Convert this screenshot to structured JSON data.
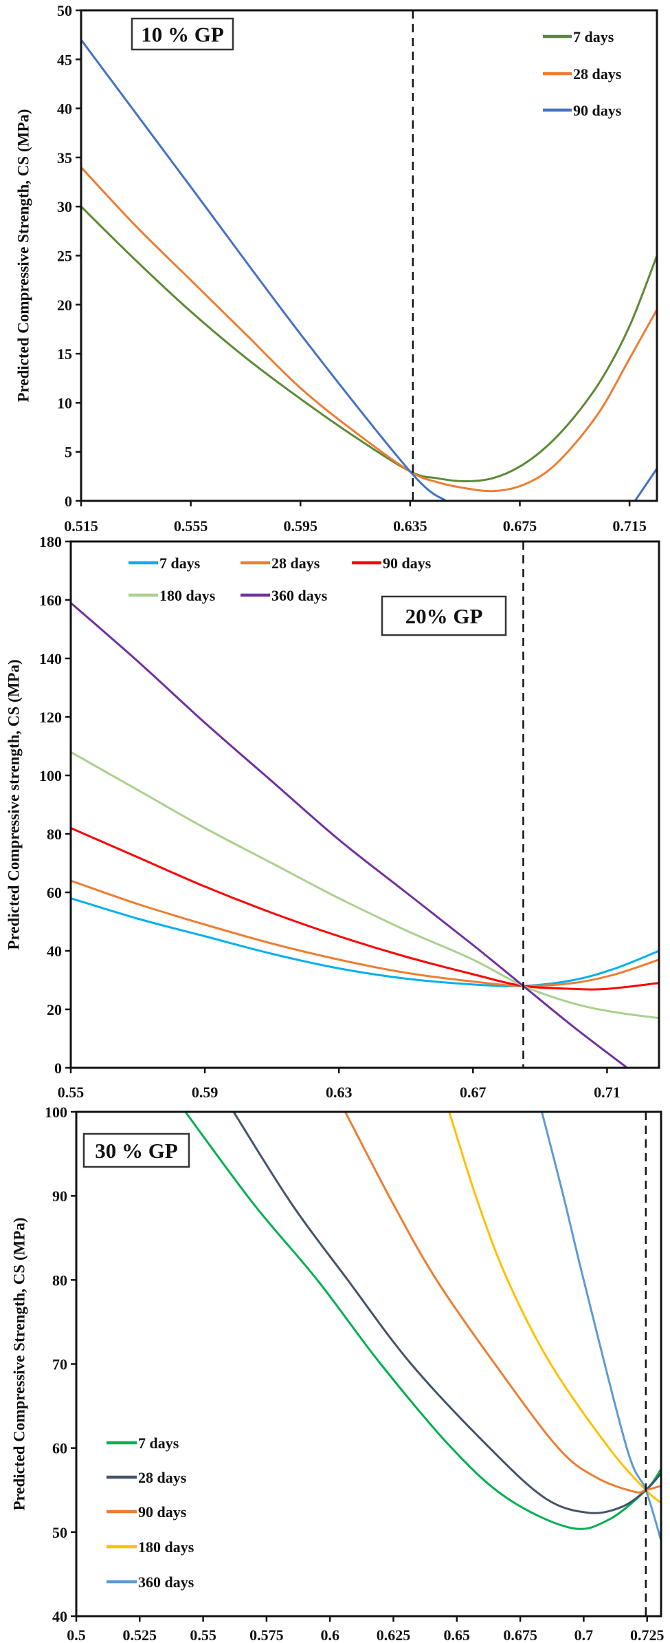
{
  "chart_data": [
    {
      "type": "line",
      "title": "10 % GP",
      "xlabel": "",
      "ylabel": "Predicted Compressive Strength, CS (MPa)",
      "xlim": [
        0.515,
        0.725
      ],
      "ylim": [
        0,
        50
      ],
      "xticks": [
        "0.515",
        "0.555",
        "0.595",
        "0.635",
        "0.675",
        "0.715"
      ],
      "yticks": [
        "0",
        "5",
        "10",
        "15",
        "20",
        "25",
        "30",
        "35",
        "40",
        "45",
        "50"
      ],
      "grid": false,
      "legend_position": "top-right",
      "reference_line_x": 0.636,
      "series": [
        {
          "name": "7 days",
          "color": "#5b8a33",
          "x": [
            0.515,
            0.535,
            0.555,
            0.575,
            0.595,
            0.615,
            0.635,
            0.645,
            0.655,
            0.665,
            0.675,
            0.685,
            0.695,
            0.705,
            0.715,
            0.725
          ],
          "y": [
            30,
            24.5,
            19.3,
            14.6,
            10.4,
            6.5,
            3.0,
            2.3,
            2.0,
            2.3,
            3.5,
            5.6,
            8.6,
            12.5,
            17.8,
            25
          ]
        },
        {
          "name": "28 days",
          "color": "#ed7d31",
          "x": [
            0.515,
            0.535,
            0.555,
            0.575,
            0.595,
            0.615,
            0.635,
            0.645,
            0.655,
            0.665,
            0.675,
            0.685,
            0.695,
            0.705,
            0.715,
            0.725
          ],
          "y": [
            34,
            28,
            22.5,
            17,
            11.5,
            7,
            3.0,
            1.9,
            1.3,
            1.0,
            1.5,
            3.0,
            5.8,
            9.5,
            14.5,
            19.5
          ]
        },
        {
          "name": "90 days",
          "color": "#4472c4",
          "x": [
            0.515,
            0.555,
            0.595,
            0.635,
            0.648,
            0.68,
            0.717,
            0.725
          ],
          "y": [
            47,
            32,
            17,
            3,
            0,
            null,
            0,
            3.3
          ]
        }
      ]
    },
    {
      "type": "line",
      "title": "20% GP",
      "xlabel": "",
      "ylabel": "Predicted Compressive strength, CS (MPa)",
      "xlim": [
        0.55,
        0.7255
      ],
      "ylim": [
        0,
        180
      ],
      "xticks": [
        "0.55",
        "0.59",
        "0.63",
        "0.67",
        "0.71"
      ],
      "yticks": [
        "0",
        "20",
        "40",
        "60",
        "80",
        "100",
        "120",
        "140",
        "160",
        "180"
      ],
      "grid": false,
      "legend_position": "top-left",
      "reference_line_x": 0.685,
      "series": [
        {
          "name": "7 days",
          "color": "#00b0f0",
          "x": [
            0.55,
            0.57,
            0.59,
            0.61,
            0.63,
            0.65,
            0.67,
            0.685,
            0.7,
            0.7125,
            0.7255
          ],
          "y": [
            58,
            51,
            45,
            39,
            34,
            30.5,
            28.5,
            28,
            30,
            34,
            40
          ]
        },
        {
          "name": "28 days",
          "color": "#ed7d31",
          "x": [
            0.55,
            0.57,
            0.59,
            0.61,
            0.63,
            0.65,
            0.67,
            0.685,
            0.7,
            0.7125,
            0.7255
          ],
          "y": [
            64,
            56,
            49,
            42.5,
            37,
            32.5,
            29.5,
            28,
            29,
            32,
            37
          ]
        },
        {
          "name": "90 days",
          "color": "#ff0000",
          "x": [
            0.55,
            0.57,
            0.59,
            0.61,
            0.63,
            0.65,
            0.67,
            0.685,
            0.7,
            0.71,
            0.7255
          ],
          "y": [
            82,
            72,
            62,
            53,
            45,
            38,
            32,
            28,
            27,
            27,
            29
          ]
        },
        {
          "name": "180 days",
          "color": "#a9d18e",
          "x": [
            0.55,
            0.57,
            0.59,
            0.61,
            0.63,
            0.65,
            0.67,
            0.685,
            0.7,
            0.7125,
            0.7255
          ],
          "y": [
            108,
            95,
            82,
            70,
            58,
            47,
            37,
            28,
            22,
            19,
            17
          ]
        },
        {
          "name": "360 days",
          "color": "#7030a0",
          "x": [
            0.55,
            0.57,
            0.59,
            0.61,
            0.63,
            0.65,
            0.67,
            0.685,
            0.7,
            0.716
          ],
          "y": [
            159,
            139,
            118,
            98,
            78,
            60,
            42,
            28,
            14,
            0
          ]
        }
      ]
    },
    {
      "type": "line",
      "title": "30 % GP",
      "xlabel": "",
      "ylabel": "Predicted Compressive Strength, CS (MPa)",
      "xlim": [
        0.5,
        0.7305
      ],
      "ylim": [
        40,
        100
      ],
      "xticks": [
        "0.5",
        "0.525",
        "0.55",
        "0.575",
        "0.6",
        "0.625",
        "0.65",
        "0.675",
        "0.7",
        "0.725"
      ],
      "yticks": [
        "40",
        "50",
        "60",
        "70",
        "80",
        "90",
        "100"
      ],
      "grid": false,
      "legend_position": "bottom-left",
      "reference_line_x": 0.7245,
      "series": [
        {
          "name": "7 days",
          "color": "#00b050",
          "x": [
            0.543,
            0.57,
            0.595,
            0.62,
            0.648,
            0.67,
            0.695,
            0.71,
            0.7245,
            0.7305
          ],
          "y": [
            100,
            89,
            80,
            70,
            60,
            54,
            50.5,
            51.5,
            55,
            57.5
          ]
        },
        {
          "name": "28 days",
          "color": "#44546a",
          "x": [
            0.562,
            0.585,
            0.607,
            0.632,
            0.663,
            0.685,
            0.702,
            0.715,
            0.7245,
            0.7305
          ],
          "y": [
            100,
            89,
            80,
            70,
            60,
            54,
            52.3,
            53,
            55,
            57
          ]
        },
        {
          "name": "90 days",
          "color": "#ed7d31",
          "x": [
            0.606,
            0.625,
            0.642,
            0.665,
            0.69,
            0.705,
            0.72,
            0.7245,
            0.7305
          ],
          "y": [
            100,
            89,
            80,
            70,
            60,
            56.5,
            54.8,
            55,
            55.5
          ]
        },
        {
          "name": "180 days",
          "color": "#ffc000",
          "x": [
            0.647,
            0.658,
            0.67,
            0.687,
            0.71,
            0.7245,
            0.7305
          ],
          "y": [
            100,
            89.5,
            80,
            70,
            60,
            55,
            53.5
          ]
        },
        {
          "name": "360 days",
          "color": "#5b9bd5",
          "x": [
            0.6835,
            0.692,
            0.7,
            0.717,
            0.7245,
            0.7305
          ],
          "y": [
            100,
            90,
            80,
            60,
            55,
            49
          ]
        }
      ]
    }
  ]
}
